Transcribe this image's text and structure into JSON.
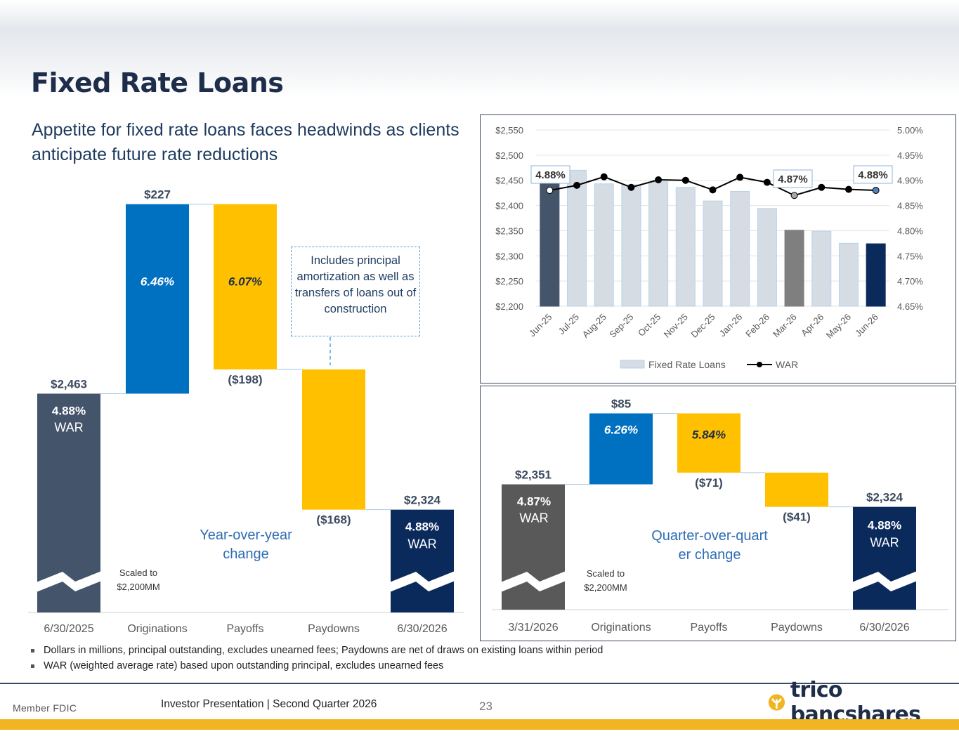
{
  "title": "Fixed Rate Loans",
  "subtitle": "Appetite for fixed rate loans faces headwinds as clients anticipate future rate reductions",
  "callout": "Includes principal amortization as well as transfers of loans out of construction",
  "footnotes": [
    "Dollars in millions, principal outstanding, excludes unearned fees; Paydowns are net of draws on existing loans within period",
    "WAR (weighted average rate) based upon outstanding principal, excludes unearned fees"
  ],
  "footer": {
    "fdic": "Member FDIC",
    "presentation": "Investor Presentation  |  Second Quarter 2026",
    "page": "23",
    "logo_text": "trico bancshares"
  },
  "colors": {
    "navy": "#1e2e4a",
    "blue": "#0070c0",
    "gold": "#ffc000",
    "slate": "#44546a",
    "darknavy": "#0b2a5c",
    "grey": "#595959",
    "lightbar": "#d6dce4"
  },
  "chart_data": [
    {
      "type": "bar",
      "subtype": "waterfall",
      "name": "Year-over-year change",
      "label": "Year-over-year change",
      "scale_note": "Scaled to $2,200MM",
      "categories": [
        "6/30/2025",
        "Originations",
        "Payoffs",
        "Paydowns",
        "6/30/2026"
      ],
      "values": [
        2463,
        227,
        -198,
        -168,
        2324
      ],
      "value_labels": [
        "$2,463",
        "$227",
        "($198)",
        "($168)",
        "$2,324"
      ],
      "rate_labels": [
        "4.88%",
        "6.46%",
        "6.07%",
        "",
        "4.88%"
      ],
      "war_label": "WAR",
      "ylim": [
        2200,
        2700
      ]
    },
    {
      "type": "bar",
      "subtype": "waterfall",
      "name": "Quarter-over-quarter change",
      "label": "Quarter-over-quarter change",
      "scale_note": "Scaled to $2,200MM",
      "categories": [
        "3/31/2026",
        "Originations",
        "Payoffs",
        "Paydowns",
        "6/30/2026"
      ],
      "values": [
        2351,
        85,
        -71,
        -41,
        2324
      ],
      "value_labels": [
        "$2,351",
        "$85",
        "($71)",
        "($41)",
        "$2,324"
      ],
      "rate_labels": [
        "4.87%",
        "6.26%",
        "5.84%",
        "",
        "4.88%"
      ],
      "war_label": "WAR",
      "ylim": [
        2200,
        2450
      ]
    },
    {
      "type": "bar",
      "subtype": "bar+line",
      "categories": [
        "Jun-25",
        "Jul-25",
        "Aug-25",
        "Sep-25",
        "Oct-25",
        "Nov-25",
        "Dec-25",
        "Jan-26",
        "Feb-26",
        "Mar-26",
        "Apr-26",
        "May-26",
        "Jun-26"
      ],
      "series": [
        {
          "name": "Fixed Rate Loans",
          "axis": "left",
          "values": [
            2463,
            2470,
            2443,
            2441,
            2447,
            2436,
            2409,
            2428,
            2394,
            2351,
            2349,
            2325,
            2324
          ]
        },
        {
          "name": "WAR",
          "axis": "right",
          "values": [
            4.88,
            4.89,
            4.907,
            4.886,
            4.901,
            4.9,
            4.881,
            4.906,
            4.896,
            4.87,
            4.886,
            4.882,
            4.88
          ]
        }
      ],
      "data_labels": [
        "4.88%",
        "4.87%",
        "4.88%"
      ],
      "y_left": {
        "ticks": [
          "$2,200",
          "$2,250",
          "$2,300",
          "$2,350",
          "$2,400",
          "$2,450",
          "$2,500",
          "$2,550"
        ],
        "range": [
          2200,
          2550
        ]
      },
      "y_right": {
        "ticks": [
          "4.65%",
          "4.70%",
          "4.75%",
          "4.80%",
          "4.85%",
          "4.90%",
          "4.95%",
          "5.00%"
        ],
        "range": [
          4.65,
          5.0
        ]
      },
      "grid": true,
      "legend": "bottom"
    }
  ]
}
